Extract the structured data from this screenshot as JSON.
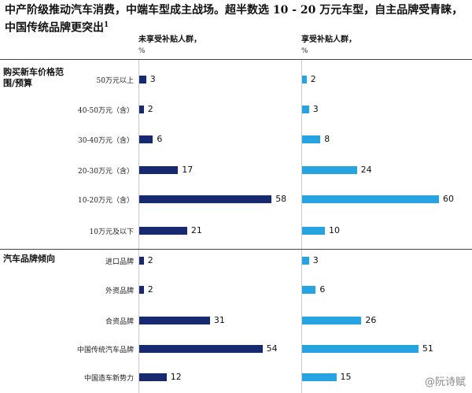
{
  "title": "中产阶级推动汽车消费，中端车型成主战场。超半数选 10 - 20 万元车型，自主品牌受青睐，中国传统品牌更突出",
  "title_sup": "1",
  "watermark": "@阮诗赋",
  "chart_data": {
    "type": "bar",
    "orientation": "horizontal",
    "unit": "%",
    "series": [
      {
        "name": "未享受补贴人群，",
        "color": "#172a70"
      },
      {
        "name": "享受补贴人群，",
        "color": "#27a3e2"
      }
    ],
    "groups": [
      {
        "label": "购买新车价格范围/预算",
        "categories": [
          "50万元以上",
          "40-50万元（含）",
          "30-40万元（含）",
          "20-30万元（含）",
          "10-20万元（含）",
          "10万元及以下"
        ],
        "values": [
          [
            3,
            2,
            6,
            17,
            58,
            21
          ],
          [
            2,
            3,
            8,
            24,
            60,
            10
          ]
        ]
      },
      {
        "label": "汽车品牌倾向",
        "categories": [
          "进口品牌",
          "外资品牌",
          "合资品牌",
          "中国传统汽车品牌",
          "中国造车新势力"
        ],
        "values": [
          [
            2,
            2,
            31,
            54,
            12
          ],
          [
            3,
            6,
            26,
            51,
            15
          ]
        ]
      }
    ]
  }
}
